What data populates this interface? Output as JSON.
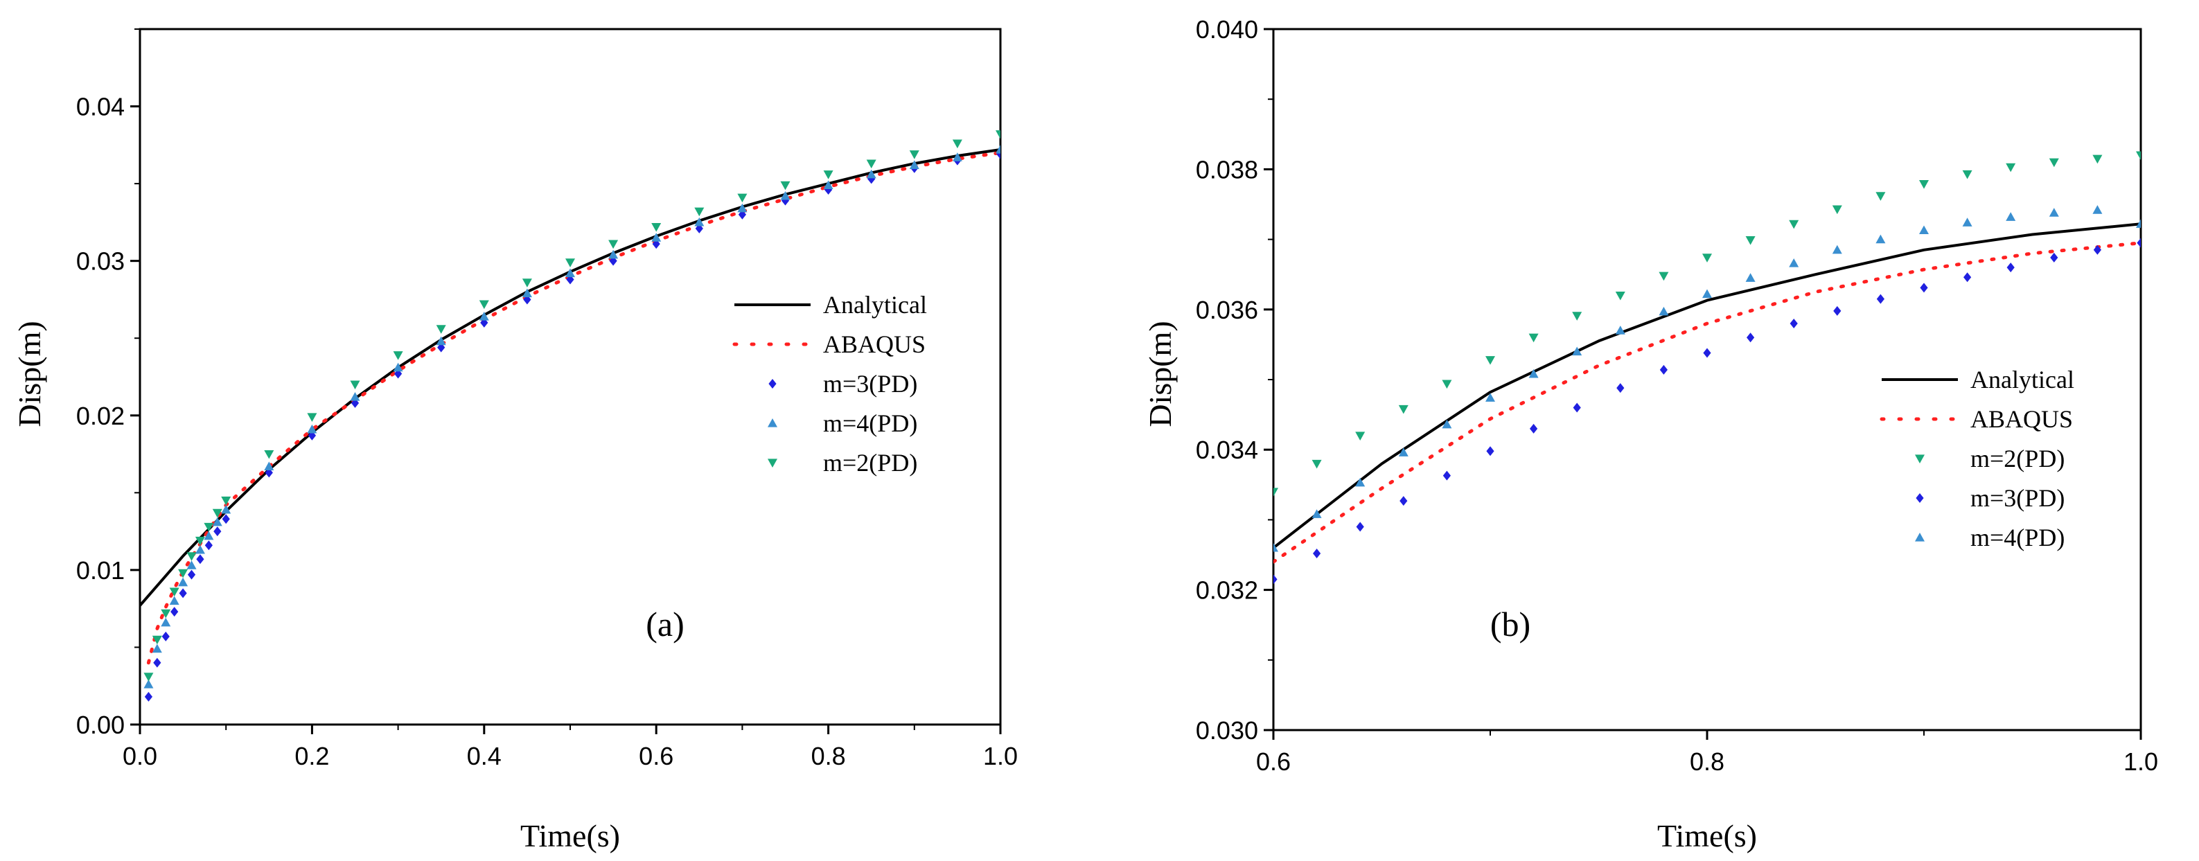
{
  "chart_data": [
    {
      "type": "line",
      "panel_label": "(a)",
      "xlabel": "Time(s)",
      "ylabel": "Disp(m)",
      "xlim": [
        0.0,
        1.0
      ],
      "ylim": [
        0.0,
        0.045
      ],
      "xticks": [
        "0.0",
        "0.2",
        "0.4",
        "0.6",
        "0.8",
        "1.0"
      ],
      "yticks": [
        "0.00",
        "0.01",
        "0.02",
        "0.03",
        "0.04"
      ],
      "legend_position": "center-right",
      "series": [
        {
          "name": "Analytical",
          "style": "solid",
          "color": "#000000",
          "x": [
            0.0,
            0.05,
            0.1,
            0.15,
            0.2,
            0.25,
            0.3,
            0.35,
            0.4,
            0.45,
            0.5,
            0.55,
            0.6,
            0.65,
            0.7,
            0.75,
            0.8,
            0.85,
            0.9,
            0.95,
            1.0
          ],
          "y": [
            0.0077,
            0.0109,
            0.0138,
            0.0165,
            0.0189,
            0.0211,
            0.0231,
            0.0249,
            0.0265,
            0.028,
            0.0293,
            0.0305,
            0.0316,
            0.0326,
            0.0335,
            0.0343,
            0.035,
            0.0357,
            0.0363,
            0.0368,
            0.0372
          ]
        },
        {
          "name": "ABAQUS",
          "style": "dotted",
          "color": "#ff2020",
          "x": [
            0.01,
            0.02,
            0.03,
            0.04,
            0.05,
            0.06,
            0.07,
            0.08,
            0.09,
            0.1,
            0.15,
            0.2,
            0.25,
            0.3,
            0.35,
            0.4,
            0.45,
            0.5,
            0.55,
            0.6,
            0.65,
            0.7,
            0.75,
            0.8,
            0.85,
            0.9,
            0.95,
            1.0
          ],
          "y": [
            0.004,
            0.0062,
            0.0076,
            0.0088,
            0.0099,
            0.0108,
            0.0117,
            0.0126,
            0.0134,
            0.0142,
            0.0167,
            0.0191,
            0.021,
            0.0229,
            0.0246,
            0.0262,
            0.0277,
            0.029,
            0.0302,
            0.0313,
            0.0323,
            0.0332,
            0.034,
            0.0348,
            0.0355,
            0.0361,
            0.0366,
            0.037
          ]
        },
        {
          "name": "m=3(PD)",
          "style": "marker",
          "marker": "diamond",
          "color": "#2020e0",
          "x": [
            0.01,
            0.02,
            0.03,
            0.04,
            0.05,
            0.06,
            0.07,
            0.08,
            0.09,
            0.1,
            0.15,
            0.2,
            0.25,
            0.3,
            0.35,
            0.4,
            0.45,
            0.5,
            0.55,
            0.6,
            0.65,
            0.7,
            0.75,
            0.8,
            0.85,
            0.9,
            0.95,
            1.0
          ],
          "y": [
            0.0018,
            0.004,
            0.0057,
            0.0073,
            0.0085,
            0.0097,
            0.0107,
            0.0116,
            0.0125,
            0.0133,
            0.0163,
            0.0187,
            0.0208,
            0.0227,
            0.0244,
            0.026,
            0.0275,
            0.0288,
            0.03,
            0.0311,
            0.0321,
            0.033,
            0.0339,
            0.0346,
            0.0353,
            0.036,
            0.0365,
            0.0369
          ]
        },
        {
          "name": "m=4(PD)",
          "style": "marker",
          "marker": "triangle-up",
          "color": "#3a8fd0",
          "x": [
            0.01,
            0.02,
            0.03,
            0.04,
            0.05,
            0.06,
            0.07,
            0.08,
            0.09,
            0.1,
            0.15,
            0.2,
            0.25,
            0.3,
            0.35,
            0.4,
            0.45,
            0.5,
            0.55,
            0.6,
            0.65,
            0.7,
            0.75,
            0.8,
            0.85,
            0.9,
            0.95,
            1.0
          ],
          "y": [
            0.0026,
            0.0049,
            0.0066,
            0.008,
            0.0092,
            0.0103,
            0.0113,
            0.0122,
            0.0131,
            0.0139,
            0.0167,
            0.0191,
            0.0212,
            0.0231,
            0.0248,
            0.0264,
            0.0279,
            0.0292,
            0.0304,
            0.0315,
            0.0325,
            0.0334,
            0.0342,
            0.0349,
            0.0356,
            0.0362,
            0.0367,
            0.0372
          ]
        },
        {
          "name": "m=2(PD)",
          "style": "marker",
          "marker": "triangle-down",
          "color": "#1aaa7a",
          "x": [
            0.01,
            0.02,
            0.03,
            0.04,
            0.05,
            0.06,
            0.07,
            0.08,
            0.09,
            0.1,
            0.15,
            0.2,
            0.25,
            0.3,
            0.35,
            0.4,
            0.45,
            0.5,
            0.55,
            0.6,
            0.65,
            0.7,
            0.75,
            0.8,
            0.85,
            0.9,
            0.95,
            1.0
          ],
          "y": [
            0.0031,
            0.0055,
            0.0072,
            0.0086,
            0.0098,
            0.0109,
            0.0119,
            0.0128,
            0.0137,
            0.0145,
            0.0175,
            0.0199,
            0.022,
            0.0239,
            0.0256,
            0.0272,
            0.0286,
            0.0299,
            0.0311,
            0.0322,
            0.0332,
            0.0341,
            0.0349,
            0.0356,
            0.0363,
            0.0369,
            0.0376,
            0.0382
          ]
        }
      ]
    },
    {
      "type": "line",
      "panel_label": "(b)",
      "xlabel": "Time(s)",
      "ylabel": "Disp(m)",
      "xlim": [
        0.6,
        1.0
      ],
      "ylim": [
        0.03,
        0.04
      ],
      "xticks": [
        "0.6",
        "0.8",
        "1.0"
      ],
      "yticks": [
        "0.030",
        "0.032",
        "0.034",
        "0.036",
        "0.038",
        "0.040"
      ],
      "legend_position": "center-right",
      "series": [
        {
          "name": "Analytical",
          "style": "solid",
          "color": "#000000",
          "x": [
            0.6,
            0.65,
            0.7,
            0.75,
            0.8,
            0.85,
            0.9,
            0.95,
            1.0
          ],
          "y": [
            0.0326,
            0.0338,
            0.03482,
            0.03555,
            0.03613,
            0.0365,
            0.03685,
            0.03707,
            0.03722
          ]
        },
        {
          "name": "ABAQUS",
          "style": "dotted",
          "color": "#ff2020",
          "x": [
            0.6,
            0.65,
            0.7,
            0.75,
            0.8,
            0.85,
            0.9,
            0.95,
            1.0
          ],
          "y": [
            0.0324,
            0.03345,
            0.03444,
            0.0352,
            0.0358,
            0.03625,
            0.03657,
            0.0368,
            0.03695
          ]
        },
        {
          "name": "m=2(PD)",
          "style": "marker",
          "marker": "triangle-down",
          "color": "#1aaa7a",
          "x": [
            0.6,
            0.62,
            0.64,
            0.66,
            0.68,
            0.7,
            0.72,
            0.74,
            0.76,
            0.78,
            0.8,
            0.82,
            0.84,
            0.86,
            0.88,
            0.9,
            0.92,
            0.94,
            0.96,
            0.98,
            1.0
          ],
          "y": [
            0.0334,
            0.0338,
            0.0342,
            0.03458,
            0.03494,
            0.03528,
            0.0356,
            0.03591,
            0.0362,
            0.03648,
            0.03674,
            0.03699,
            0.03722,
            0.03743,
            0.03762,
            0.03779,
            0.03793,
            0.03803,
            0.0381,
            0.03815,
            0.0382
          ]
        },
        {
          "name": "m=3(PD)",
          "style": "marker",
          "marker": "diamond",
          "color": "#2020e0",
          "x": [
            0.6,
            0.62,
            0.64,
            0.66,
            0.68,
            0.7,
            0.72,
            0.74,
            0.76,
            0.78,
            0.8,
            0.82,
            0.84,
            0.86,
            0.88,
            0.9,
            0.92,
            0.94,
            0.96,
            0.98,
            1.0
          ],
          "y": [
            0.03215,
            0.03252,
            0.0329,
            0.03327,
            0.03363,
            0.03398,
            0.0343,
            0.0346,
            0.03488,
            0.03514,
            0.03538,
            0.0356,
            0.0358,
            0.03598,
            0.03615,
            0.03631,
            0.03646,
            0.0366,
            0.03674,
            0.03685,
            0.03695
          ]
        },
        {
          "name": "m=4(PD)",
          "style": "marker",
          "marker": "triangle-up",
          "color": "#3a8fd0",
          "x": [
            0.6,
            0.62,
            0.64,
            0.66,
            0.68,
            0.7,
            0.72,
            0.74,
            0.76,
            0.78,
            0.8,
            0.82,
            0.84,
            0.86,
            0.88,
            0.9,
            0.92,
            0.94,
            0.96,
            0.98,
            1.0
          ],
          "y": [
            0.0326,
            0.03308,
            0.03353,
            0.03396,
            0.03436,
            0.03474,
            0.03508,
            0.0354,
            0.0357,
            0.03597,
            0.03622,
            0.03645,
            0.03666,
            0.03685,
            0.037,
            0.03713,
            0.03724,
            0.03732,
            0.03738,
            0.03742,
            0.03722
          ]
        }
      ]
    }
  ]
}
